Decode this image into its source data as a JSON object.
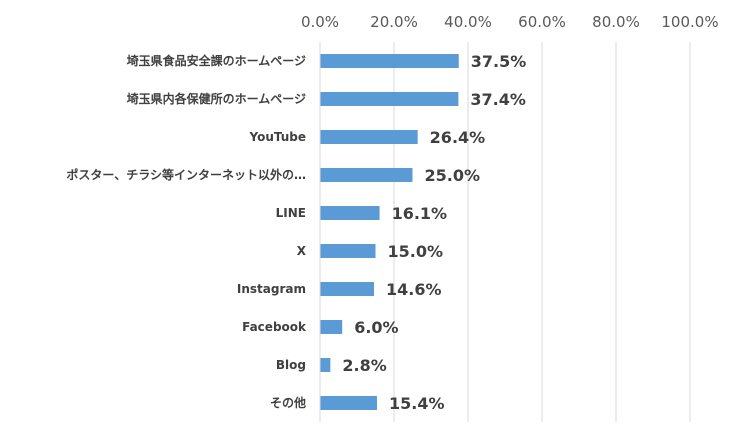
{
  "chart_data": {
    "type": "bar",
    "orientation": "horizontal",
    "categories": [
      "埼玉県食品安全課のホームページ",
      "埼玉県内各保健所のホームページ",
      "YouTube",
      "ポスター、チラシ等インターネット以外の…",
      "LINE",
      "X",
      "Instagram",
      "Facebook",
      "Blog",
      "その他"
    ],
    "values": [
      37.5,
      37.4,
      26.4,
      25.0,
      16.1,
      15.0,
      14.6,
      6.0,
      2.8,
      15.4
    ],
    "value_labels": [
      "37.5%",
      "37.4%",
      "26.4%",
      "25.0%",
      "16.1%",
      "15.0%",
      "14.6%",
      "6.0%",
      "2.8%",
      "15.4%"
    ],
    "xlim": [
      0,
      100
    ],
    "xticks": [
      0,
      20,
      40,
      60,
      80,
      100
    ],
    "xtick_labels": [
      "0.0%",
      "20.0%",
      "40.0%",
      "60.0%",
      "80.0%",
      "100.0%"
    ],
    "axis_position": "top",
    "grid": true,
    "bar_color": "#5B9BD5",
    "grid_color": "#D9D9D9",
    "title": "",
    "xlabel": "",
    "ylabel": ""
  }
}
